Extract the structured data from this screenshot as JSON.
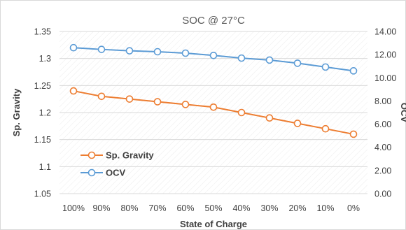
{
  "chart_data": {
    "type": "line",
    "title": "SOC @ 27°C",
    "xlabel": "State of Charge",
    "ylabel_left": "Sp. Gravity",
    "ylabel_right": "OCV",
    "categories": [
      "100%",
      "90%",
      "80%",
      "70%",
      "60%",
      "50%",
      "40%",
      "30%",
      "20%",
      "10%",
      "0%"
    ],
    "y_left": {
      "lim": [
        1.05,
        1.35
      ],
      "ticks": [
        "1.05",
        "1.1",
        "1.15",
        "1.2",
        "1.25",
        "1.3",
        "1.35"
      ],
      "tick_values": [
        1.05,
        1.1,
        1.15,
        1.2,
        1.25,
        1.3,
        1.35
      ]
    },
    "y_right": {
      "lim": [
        0,
        14
      ],
      "ticks": [
        "0.00",
        "2.00",
        "4.00",
        "6.00",
        "8.00",
        "10.00",
        "12.00",
        "14.00"
      ],
      "tick_values": [
        0,
        2,
        4,
        6,
        8,
        10,
        12,
        14
      ]
    },
    "grid": true,
    "legend_position": "bottom-left",
    "series": [
      {
        "name": "Sp. Gravity",
        "axis": "left",
        "color": "#ED7D31",
        "values": [
          1.24,
          1.23,
          1.225,
          1.22,
          1.215,
          1.21,
          1.2,
          1.19,
          1.18,
          1.17,
          1.16
        ]
      },
      {
        "name": "OCV",
        "axis": "right",
        "color": "#5B9BD5",
        "values": [
          12.6,
          12.45,
          12.33,
          12.25,
          12.13,
          11.93,
          11.7,
          11.53,
          11.26,
          10.93,
          10.6
        ]
      }
    ]
  }
}
